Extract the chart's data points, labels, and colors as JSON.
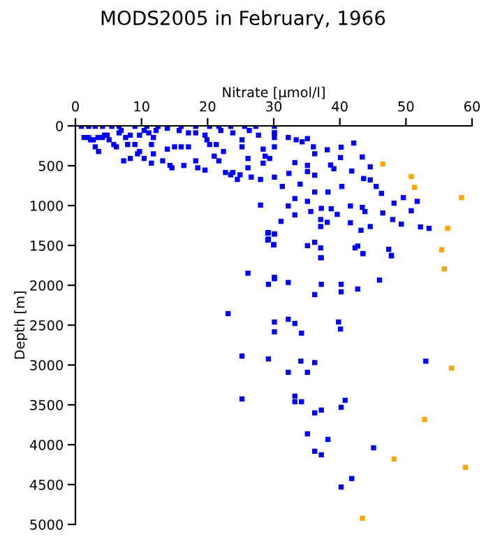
{
  "chart_data": {
    "type": "scatter",
    "title": "MODS2005 in February, 1966",
    "xlabel": "Nitrate [µmol/l]",
    "ylabel": "Depth [m]",
    "xlim": [
      0,
      60
    ],
    "xticks": [
      0,
      10,
      20,
      30,
      40,
      50,
      60
    ],
    "ylim": [
      5000,
      0
    ],
    "yticks": [
      0,
      500,
      1000,
      1500,
      2000,
      2500,
      3000,
      3500,
      4000,
      4500,
      5000
    ],
    "grid": false,
    "marker": "square",
    "series": [
      {
        "color": "#0000ff",
        "x": [
          0.9,
          2.0,
          3.0,
          4.1,
          5.5,
          6.6,
          9.0,
          10.8,
          12.5,
          13.9,
          16.0,
          18.2,
          20.3,
          21.7,
          23.5,
          25.6,
          27.3,
          30.1,
          1.3,
          2.3,
          3.4,
          4.4,
          2.7,
          4.1,
          5.1,
          2.0,
          5.8,
          6.2,
          3.0,
          3.5,
          4.8,
          6.9,
          7.6,
          7.9,
          7.3,
          8.3,
          9.0,
          9.7,
          10.4,
          11.1,
          11.8,
          12.2,
          11.5,
          9.7,
          9.4,
          10.4,
          11.5,
          11.8,
          13.2,
          14.3,
          14.6,
          13.9,
          15.0,
          16.0,
          16.4,
          17.1,
          18.2,
          18.5,
          19.6,
          19.9,
          20.3,
          21.0,
          21.7,
          21.3,
          22.4,
          22.7,
          23.5,
          23.8,
          24.5,
          24.9,
          25.2,
          25.2,
          26.1,
          26.1,
          26.6,
          28.0,
          28.4,
          28.4,
          28.7,
          29.4,
          30.1,
          30.1,
          30.1,
          30.1,
          27.7,
          26.3,
          23.8,
          22.0,
          19.6,
          18.2,
          17.1,
          15.7,
          13.9,
          8.3,
          6.6,
          28.0,
          29.1,
          29.1,
          30.1,
          30.0,
          30.1,
          30.1,
          32.2,
          33.4,
          35.1,
          34.3,
          36.0,
          36.2,
          38.1,
          40.2,
          42.1,
          41.8,
          43.4,
          44.6,
          40.1,
          38.6,
          39.1,
          32.3,
          33.2,
          35.1,
          35.1,
          36.2,
          44.6,
          45.5,
          46.3,
          43.6,
          40.3,
          38.2,
          36.2,
          34.0,
          33.2,
          35.1,
          31.3,
          32.2,
          33.2,
          31.1,
          37.2,
          35.6,
          38.7,
          39.6,
          41.6,
          43.4,
          46.5,
          43.8,
          48.2,
          49.6,
          51.7,
          50.8,
          48.0,
          49.3,
          52.2,
          53.5,
          37.1,
          37.1,
          38.1,
          41.6,
          43.2,
          44.6,
          29.2,
          30.1,
          29.2,
          30.0,
          35.1,
          36.2,
          37.1,
          37.1,
          42.3,
          42.7,
          43.5,
          47.4,
          47.8,
          37.2,
          43.5,
          47.8,
          26.1,
          30.1,
          29.2,
          32.2,
          37.2,
          40.2,
          36.2,
          40.2,
          42.7,
          46.0,
          23.1,
          30.1,
          32.2,
          33.2,
          39.8,
          40.1,
          30.1,
          34.2,
          25.2,
          29.2,
          34.1,
          36.2,
          32.2,
          35.1,
          53.0,
          25.2,
          33.2,
          33.2,
          34.2,
          40.8,
          36.2,
          37.2,
          40.2,
          35.1,
          38.2,
          36.2,
          37.2,
          45.1,
          41.8,
          40.2
        ],
        "values": [
          6,
          6,
          6,
          6,
          6,
          6,
          6,
          6,
          6,
          6,
          6,
          6,
          6,
          6,
          6,
          6,
          6,
          6,
          146,
          175,
          146,
          117,
          175,
          146,
          175,
          146,
          234,
          263,
          263,
          322,
          117,
          58,
          146,
          234,
          439,
          409,
          234,
          117,
          58,
          88,
          146,
          58,
          234,
          322,
          351,
          409,
          468,
          351,
          439,
          497,
          526,
          292,
          263,
          263,
          497,
          263,
          439,
          526,
          555,
          175,
          234,
          380,
          439,
          234,
          322,
          585,
          614,
          585,
          672,
          614,
          175,
          263,
          409,
          526,
          643,
          672,
          468,
          292,
          380,
          409,
          146,
          88,
          643,
          263,
          117,
          58,
          88,
          58,
          117,
          88,
          88,
          58,
          30,
          117,
          88,
          994,
          1345,
          1432,
          1356,
          1491,
          1900,
          88,
          146,
          175,
          160,
          200,
          263,
          350,
          300,
          268,
          216,
          567,
          391,
          514,
          398,
          491,
          538,
          596,
          461,
          496,
          573,
          619,
          678,
          760,
          847,
          661,
          760,
          830,
          830,
          731,
          912,
          947,
          760,
          1005,
          1117,
          1198,
          1035,
          1075,
          1040,
          1110,
          1005,
          1023,
          1093,
          1075,
          970,
          900,
          947,
          1065,
          1175,
          1233,
          1268,
          1286,
          1175,
          1263,
          1210,
          1216,
          1310,
          1263,
          1338,
          1356,
          1420,
          1491,
          1503,
          1461,
          1531,
          1654,
          1531,
          1508,
          1602,
          1549,
          1631,
          1655,
          1602,
          1625,
          1848,
          1918,
          1988,
          1965,
          1988,
          1988,
          2117,
          2082,
          2047,
          1935,
          2356,
          2461,
          2426,
          2479,
          2461,
          2549,
          2584,
          2601,
          2888,
          2924,
          2952,
          2970,
          3092,
          3092,
          2952,
          3426,
          3391,
          3461,
          3461,
          3443,
          3601,
          3566,
          3531,
          3864,
          3934,
          4082,
          4127,
          4039,
          4425,
          4531
        ]
      },
      {
        "color": "#ffa500",
        "x": [
          46.5,
          50.8,
          51.3,
          58.4,
          56.3,
          55.4,
          55.8,
          56.9,
          52.8,
          48.2,
          59.0,
          43.4
        ],
        "values": [
          479,
          637,
          772,
          900,
          1286,
          1555,
          1795,
          3040,
          3683,
          4180,
          4285,
          4923
        ]
      }
    ]
  }
}
